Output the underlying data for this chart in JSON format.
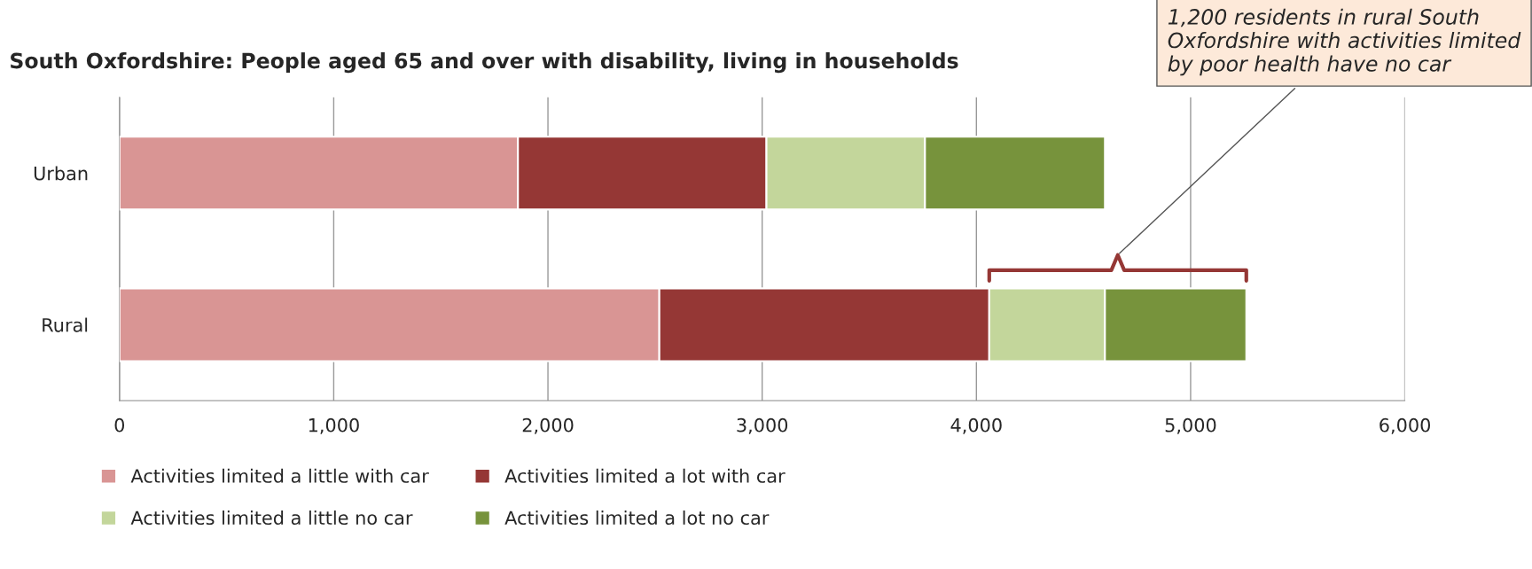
{
  "chart_data": {
    "type": "bar",
    "orientation": "horizontal",
    "stacked": true,
    "title": "South Oxfordshire: People aged 65 and over with disability, living in households",
    "categories": [
      "Urban",
      "Rural"
    ],
    "series": [
      {
        "name": "Activities limited a little with car",
        "color": "#d99594",
        "values": [
          1860,
          2520
        ]
      },
      {
        "name": "Activities limited a lot with car",
        "color": "#953735",
        "values": [
          1160,
          1540
        ]
      },
      {
        "name": "Activities limited a little no car",
        "color": "#c3d69b",
        "values": [
          740,
          540
        ]
      },
      {
        "name": "Activities limited a lot no car",
        "color": "#77933c",
        "values": [
          840,
          660
        ]
      }
    ],
    "xlim": [
      0,
      6000
    ],
    "xticks": [
      0,
      {
        "value": 1000,
        "label": "1,000"
      },
      {
        "value": 2000,
        "label": "2,000"
      },
      {
        "value": 3000,
        "label": "3,000"
      },
      {
        "value": 4000,
        "label": "4,000"
      },
      {
        "value": 5000,
        "label": "5,000"
      },
      {
        "value": 6000,
        "label": "6,000"
      }
    ],
    "grid": "x",
    "legend": "bottom",
    "annotations": [
      "1,200 residents in rural South Oxfordshire with activities limited by poor health have no car"
    ]
  }
}
